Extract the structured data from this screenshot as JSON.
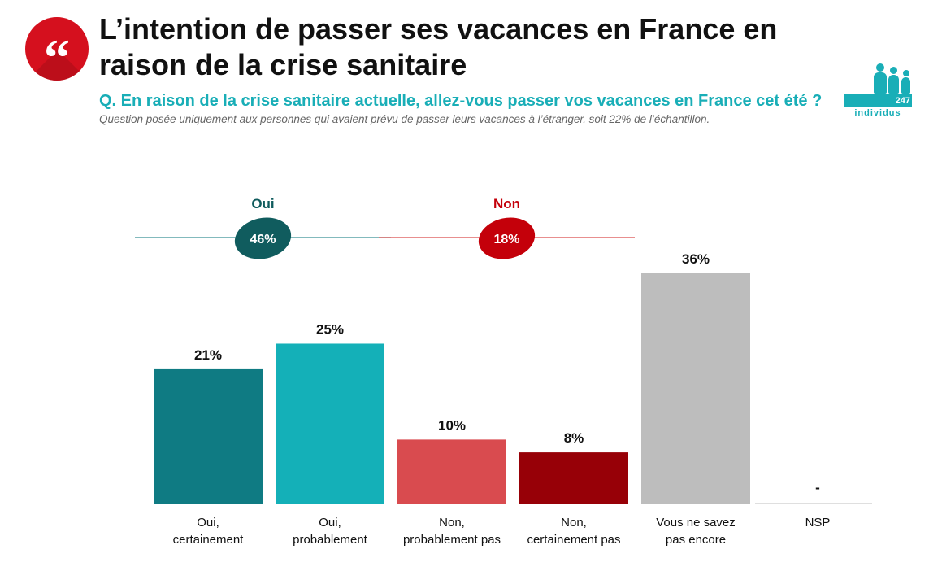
{
  "header": {
    "quote_glyph": "“",
    "title": "L’intention de passer ses vacances en France en raison de la crise sanitaire",
    "question": "Q. En raison de la crise sanitaire actuelle, allez-vous passer vos vacances en France cet été ?",
    "note": "Question posée uniquement aux personnes qui avaient prévu de passer leurs vacances à l’étranger, soit 22% de l’échantillon.",
    "sample_count": "247",
    "sample_label": "individus"
  },
  "colors": {
    "teal_dark": "#0f7b83",
    "teal_light": "#14b0b8",
    "red_light": "#d94b4f",
    "red_dark": "#970007",
    "grey": "#bdbdbd",
    "oui_group": "#105c5e",
    "non_group": "#c4000a"
  },
  "chart_data": {
    "type": "bar",
    "categories": [
      [
        "Oui,",
        "certainement"
      ],
      [
        "Oui,",
        "probablement"
      ],
      [
        "Non,",
        "probablement pas"
      ],
      [
        "Non,",
        "certainement pas"
      ],
      [
        "Vous ne savez",
        "pas encore"
      ],
      [
        "NSP"
      ]
    ],
    "values": [
      21,
      25,
      10,
      8,
      36,
      null
    ],
    "value_labels": [
      "21%",
      "25%",
      "10%",
      "8%",
      "36%",
      "-"
    ],
    "bar_colors": [
      "#0f7b83",
      "#14b0b8",
      "#d94b4f",
      "#970007",
      "#bdbdbd",
      "#bdbdbd"
    ],
    "ylim": [
      0,
      36
    ],
    "groups": [
      {
        "name": "Oui",
        "total": "46%",
        "from": 0,
        "to": 1,
        "color": "#105c5e",
        "line_color": "#5aa4a7"
      },
      {
        "name": "Non",
        "total": "18%",
        "from": 2,
        "to": 3,
        "color": "#c4000a",
        "line_color": "#e06a6a"
      }
    ]
  }
}
